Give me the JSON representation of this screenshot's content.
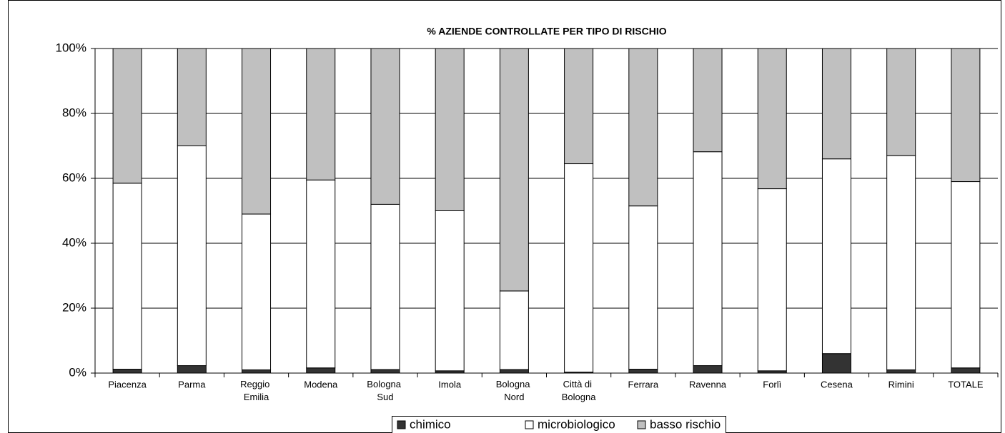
{
  "chart_data": {
    "type": "stacked_bar",
    "title": "% AZIENDE CONTROLLATE PER TIPO DI RISCHIO",
    "categories": [
      "Piacenza",
      "Parma",
      "Reggio Emilia",
      "Modena",
      "Bologna Sud",
      "Imola",
      "Bologna Nord",
      "Città di Bologna",
      "Ferrara",
      "Ravenna",
      "Forlì",
      "Cesena",
      "Rimini",
      "TOTALE"
    ],
    "series": [
      {
        "name": "chimico",
        "color": "#333333",
        "values": [
          1.2,
          2.3,
          1.0,
          1.6,
          1.1,
          0.7,
          1.1,
          0.3,
          1.2,
          2.3,
          0.7,
          6.0,
          1.0,
          1.6
        ]
      },
      {
        "name": "microbiologico",
        "color": "#ffffff",
        "values": [
          57.3,
          67.7,
          48.0,
          57.9,
          50.9,
          49.3,
          24.2,
          64.2,
          50.3,
          65.9,
          56.1,
          60.0,
          66.0,
          57.4
        ]
      },
      {
        "name": "basso rischio",
        "color": "#c0c0c0",
        "values": [
          41.5,
          30.0,
          51.0,
          40.5,
          48.0,
          50.0,
          74.7,
          35.5,
          48.5,
          31.8,
          43.2,
          34.0,
          33.0,
          41.0
        ]
      }
    ],
    "ylim": [
      0,
      100
    ],
    "yticks": [
      {
        "value": 0,
        "label": "0%"
      },
      {
        "value": 20,
        "label": "20%"
      },
      {
        "value": 40,
        "label": "40%"
      },
      {
        "value": 60,
        "label": "60%"
      },
      {
        "value": 80,
        "label": "80%"
      },
      {
        "value": 100,
        "label": "100%"
      }
    ],
    "grid": true,
    "legend": "bottom"
  }
}
